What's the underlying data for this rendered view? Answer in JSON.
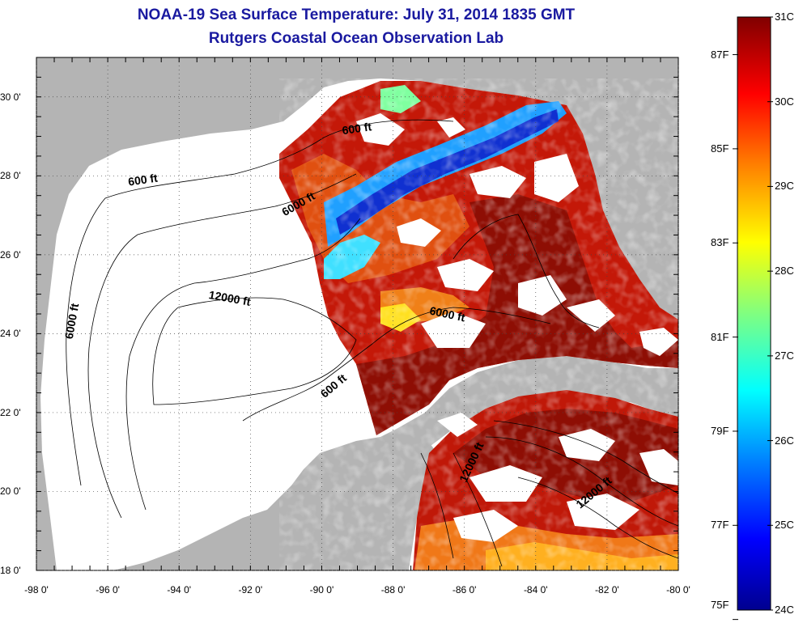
{
  "title": "NOAA-19 Sea Surface Temperature:  July 31, 2014 1835 GMT",
  "subtitle": "Rutgers Coastal Ocean Observation Lab",
  "x_ticks": [
    {
      "value": -98,
      "label": "-98 0'"
    },
    {
      "value": -96,
      "label": "-96 0'"
    },
    {
      "value": -94,
      "label": "-94 0'"
    },
    {
      "value": -92,
      "label": "-92 0'"
    },
    {
      "value": -90,
      "label": "-90 0'"
    },
    {
      "value": -88,
      "label": "-88 0'"
    },
    {
      "value": -86,
      "label": "-86 0'"
    },
    {
      "value": -84,
      "label": "-84 0'"
    },
    {
      "value": -82,
      "label": "-82 0'"
    },
    {
      "value": -80,
      "label": "-80 0'"
    }
  ],
  "y_ticks": [
    {
      "value": 30,
      "label": "30 0'"
    },
    {
      "value": 28,
      "label": "28 0'"
    },
    {
      "value": 26,
      "label": "26 0'"
    },
    {
      "value": 24,
      "label": "24 0'"
    },
    {
      "value": 22,
      "label": "22 0'"
    },
    {
      "value": 20,
      "label": "20 0'"
    },
    {
      "value": 18,
      "label": "18 0'"
    }
  ],
  "map": {
    "lon_range": [
      -98,
      -80
    ],
    "lat_range": [
      18,
      31
    ],
    "land_color": "#b4b4b4",
    "nodata_color": "#ffffff",
    "grid": "dotted"
  },
  "contour_labels": [
    {
      "text": "600 ft",
      "lon": -89.0,
      "lat": 29.1
    },
    {
      "text": "600 ft",
      "lon": -95.0,
      "lat": 27.8
    },
    {
      "text": "6000 ft",
      "lon": -90.6,
      "lat": 27.2
    },
    {
      "text": "12000 ft",
      "lon": -92.6,
      "lat": 24.8
    },
    {
      "text": "6000 ft",
      "lon": -96.9,
      "lat": 24.3
    },
    {
      "text": "6000 ft",
      "lon": -86.5,
      "lat": 24.4
    },
    {
      "text": "600 ft",
      "lon": -89.6,
      "lat": 22.6
    },
    {
      "text": "12000 ft",
      "lon": -85.7,
      "lat": 20.7
    },
    {
      "text": "12000 ft",
      "lon": -82.3,
      "lat": 19.9
    }
  ],
  "colorbar": {
    "min_c": 24,
    "max_c": 31,
    "celsius_labels": [
      "31C",
      "30C",
      "29C",
      "28C",
      "27C",
      "26C",
      "25C",
      "24C"
    ],
    "fahrenheit_labels": [
      "87F",
      "85F",
      "83F",
      "81F",
      "79F",
      "77F",
      "75F"
    ],
    "colors": [
      "#00008f",
      "#0000ff",
      "#0080ff",
      "#00ffff",
      "#80ff80",
      "#ffff00",
      "#ff8000",
      "#ff0000",
      "#800000"
    ]
  }
}
